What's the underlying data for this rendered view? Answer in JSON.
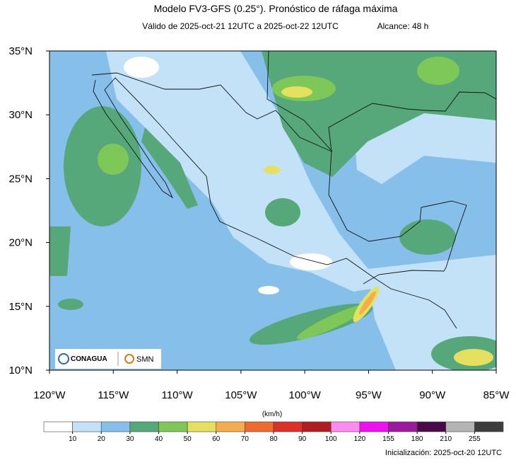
{
  "title": "Modelo FV3-GFS (0.25°). Pronóstico de ráfaga máxima",
  "subtitle": "Válido de 2025-oct-21 12UTC a 2025-oct-22 12UTC",
  "range": "Alcance: 48 h",
  "map": {
    "lon_range": [
      -120,
      -85
    ],
    "lat_range": [
      10,
      35
    ],
    "lon_ticks": [
      {
        "value": -120,
        "label": "120°W"
      },
      {
        "value": -115,
        "label": "115°W"
      },
      {
        "value": -110,
        "label": "110°W"
      },
      {
        "value": -105,
        "label": "105°W"
      },
      {
        "value": -100,
        "label": "100°W"
      },
      {
        "value": -95,
        "label": "95°W"
      },
      {
        "value": -90,
        "label": "90°W"
      },
      {
        "value": -85,
        "label": "85°W"
      }
    ],
    "lat_ticks": [
      {
        "value": 10,
        "label": "10°N"
      },
      {
        "value": 15,
        "label": "15°N"
      },
      {
        "value": 20,
        "label": "20°N"
      },
      {
        "value": 25,
        "label": "25°N"
      },
      {
        "value": 30,
        "label": "30°N"
      },
      {
        "value": 35,
        "label": "35°N"
      }
    ]
  },
  "logos": [
    "CONAGUA",
    "SMN"
  ],
  "colorbar": {
    "unit": "(km/h)",
    "colors": [
      "#ffffff",
      "#c3e2f7",
      "#86c0ea",
      "#56a87a",
      "#7ec85a",
      "#e6e060",
      "#f4ad4d",
      "#ee6a2e",
      "#dc3028",
      "#b01e22",
      "#fc8cf0",
      "#ee10ee",
      "#9c1a9c",
      "#4a0a4a",
      "#b4b4b4",
      "#3c3c3c"
    ],
    "ticks": [
      10,
      20,
      30,
      40,
      50,
      60,
      70,
      80,
      90,
      100,
      120,
      155,
      180,
      210,
      255
    ]
  },
  "footer": "Inicialización: 2025-oct-20 12UTC"
}
